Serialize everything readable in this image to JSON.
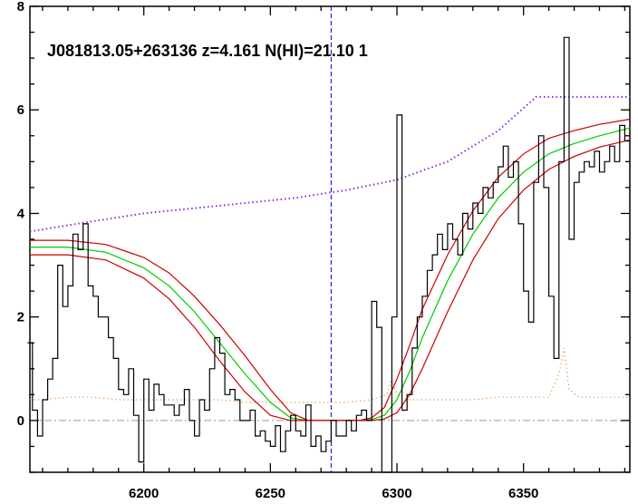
{
  "chart_data": {
    "type": "line",
    "title": "J081813.05+263136 z=4.161 N(HI)=21.10 1",
    "xlabel": "",
    "ylabel": "",
    "xlim": [
      6155,
      6392
    ],
    "ylim": [
      -1,
      8
    ],
    "x_ticks": [
      6200,
      6250,
      6300,
      6350
    ],
    "y_ticks": [
      0,
      2,
      4,
      6,
      8
    ],
    "grid": false,
    "legend": "none",
    "marker_x": 6274,
    "zero_level": 0,
    "colors": {
      "flux": "#000000",
      "continuum": "#8a2be2",
      "fit": "#00cc00",
      "fit_bounds": "#cc0000",
      "error": "#e8a060",
      "marker": "#0000cc",
      "zero": "#999999"
    },
    "series": [
      {
        "role": "flux",
        "x": [
          6155,
          6157,
          6159,
          6161,
          6163,
          6165,
          6167,
          6169,
          6171,
          6173,
          6175,
          6177,
          6179,
          6181,
          6183,
          6185,
          6187,
          6189,
          6191,
          6193,
          6195,
          6197,
          6199,
          6201,
          6203,
          6205,
          6207,
          6209,
          6211,
          6213,
          6215,
          6217,
          6219,
          6221,
          6223,
          6225,
          6227,
          6229,
          6231,
          6233,
          6235,
          6237,
          6239,
          6241,
          6243,
          6245,
          6247,
          6249,
          6251,
          6253,
          6255,
          6257,
          6259,
          6261,
          6263,
          6265,
          6267,
          6269,
          6271,
          6273,
          6275,
          6277,
          6279,
          6281,
          6283,
          6285,
          6287,
          6289,
          6291,
          6293,
          6295,
          6297,
          6299,
          6301,
          6303,
          6305,
          6307,
          6309,
          6311,
          6313,
          6315,
          6317,
          6319,
          6321,
          6323,
          6325,
          6327,
          6329,
          6331,
          6333,
          6335,
          6337,
          6339,
          6341,
          6343,
          6345,
          6347,
          6349,
          6351,
          6353,
          6355,
          6357,
          6359,
          6361,
          6363,
          6365,
          6367,
          6369,
          6371,
          6373,
          6375,
          6377,
          6379,
          6381,
          6383,
          6385,
          6387,
          6389,
          6391
        ],
        "y": [
          1.5,
          0.2,
          -0.3,
          0.4,
          0.8,
          1.2,
          3.0,
          2.2,
          2.6,
          3.6,
          3.3,
          3.8,
          2.6,
          2.4,
          2.0,
          2.0,
          1.6,
          1.2,
          0.6,
          0.5,
          1.0,
          0.1,
          -0.8,
          0.8,
          0.2,
          0.7,
          0.5,
          0.3,
          0.3,
          0.1,
          0.3,
          0.6,
          0.0,
          -0.3,
          0.4,
          0.2,
          1.0,
          1.6,
          1.3,
          0.5,
          0.6,
          0.4,
          0.0,
          0.0,
          0.2,
          -0.3,
          -0.2,
          -0.4,
          -0.5,
          -0.1,
          -0.6,
          -0.2,
          0.1,
          -0.2,
          -0.3,
          0.3,
          -0.5,
          -0.3,
          -0.6,
          -0.4,
          0.0,
          -0.3,
          -0.3,
          0.0,
          -0.2,
          0.1,
          0.2,
          0.0,
          2.3,
          1.8,
          -1.0,
          -1.1,
          2.0,
          5.9,
          0.2,
          0.5,
          1.4,
          2.0,
          2.4,
          2.9,
          3.2,
          3.6,
          3.3,
          3.8,
          3.5,
          3.2,
          4.0,
          3.7,
          4.2,
          4.0,
          4.5,
          4.3,
          4.6,
          4.9,
          5.3,
          4.7,
          5.0,
          3.8,
          2.5,
          1.9,
          4.6,
          5.5,
          4.5,
          2.4,
          1.2,
          5.0,
          7.4,
          3.5,
          4.6,
          4.8,
          5.0,
          4.9,
          5.2,
          4.8,
          5.0,
          5.3,
          5.0,
          5.7,
          5.4
        ]
      },
      {
        "role": "continuum",
        "x": [
          6155,
          6180,
          6200,
          6220,
          6240,
          6260,
          6280,
          6300,
          6320,
          6340,
          6355,
          6370,
          6392
        ],
        "y": [
          3.65,
          3.85,
          4.0,
          4.1,
          4.2,
          4.3,
          4.45,
          4.65,
          5.0,
          5.6,
          6.25,
          6.25,
          6.25
        ]
      },
      {
        "role": "fit",
        "x": [
          6155,
          6170,
          6185,
          6200,
          6210,
          6220,
          6230,
          6240,
          6250,
          6258,
          6265,
          6275,
          6285,
          6290,
          6295,
          6300,
          6305,
          6310,
          6320,
          6330,
          6340,
          6350,
          6360,
          6370,
          6380,
          6392
        ],
        "y": [
          3.35,
          3.35,
          3.25,
          2.95,
          2.6,
          2.1,
          1.5,
          0.9,
          0.35,
          0.05,
          0.0,
          0.0,
          0.0,
          0.02,
          0.1,
          0.4,
          0.95,
          1.6,
          2.7,
          3.6,
          4.3,
          4.8,
          5.15,
          5.35,
          5.5,
          5.65
        ]
      },
      {
        "role": "fit_upper",
        "x": [
          6155,
          6170,
          6185,
          6200,
          6210,
          6220,
          6230,
          6240,
          6250,
          6258,
          6265,
          6275,
          6285,
          6290,
          6295,
          6300,
          6305,
          6310,
          6320,
          6330,
          6340,
          6350,
          6360,
          6370,
          6380,
          6392
        ],
        "y": [
          3.48,
          3.48,
          3.4,
          3.15,
          2.85,
          2.4,
          1.85,
          1.25,
          0.6,
          0.15,
          0.0,
          0.0,
          0.0,
          0.05,
          0.25,
          0.8,
          1.45,
          2.15,
          3.2,
          4.05,
          4.7,
          5.15,
          5.45,
          5.6,
          5.72,
          5.82
        ]
      },
      {
        "role": "fit_lower",
        "x": [
          6155,
          6170,
          6185,
          6200,
          6210,
          6220,
          6230,
          6240,
          6250,
          6258,
          6265,
          6275,
          6285,
          6290,
          6295,
          6300,
          6305,
          6310,
          6320,
          6330,
          6340,
          6350,
          6360,
          6370,
          6380,
          6392
        ],
        "y": [
          3.2,
          3.2,
          3.1,
          2.75,
          2.35,
          1.8,
          1.15,
          0.55,
          0.1,
          0.0,
          0.0,
          0.0,
          0.0,
          0.0,
          0.03,
          0.15,
          0.5,
          1.0,
          2.1,
          3.1,
          3.9,
          4.45,
          4.85,
          5.1,
          5.28,
          5.42
        ]
      },
      {
        "role": "error",
        "x": [
          6155,
          6160,
          6170,
          6180,
          6190,
          6200,
          6210,
          6220,
          6230,
          6240,
          6250,
          6260,
          6270,
          6280,
          6290,
          6296,
          6298,
          6300,
          6302,
          6304,
          6310,
          6320,
          6330,
          6340,
          6350,
          6360,
          6364,
          6366,
          6368,
          6372,
          6380,
          6392
        ],
        "y": [
          0.4,
          0.4,
          0.45,
          0.45,
          0.4,
          0.4,
          0.4,
          0.4,
          0.4,
          0.35,
          0.35,
          0.35,
          0.35,
          0.35,
          0.4,
          0.5,
          0.8,
          0.5,
          0.45,
          0.4,
          0.4,
          0.4,
          0.4,
          0.45,
          0.45,
          0.45,
          0.9,
          1.4,
          0.6,
          0.45,
          0.45,
          0.45
        ]
      }
    ]
  }
}
